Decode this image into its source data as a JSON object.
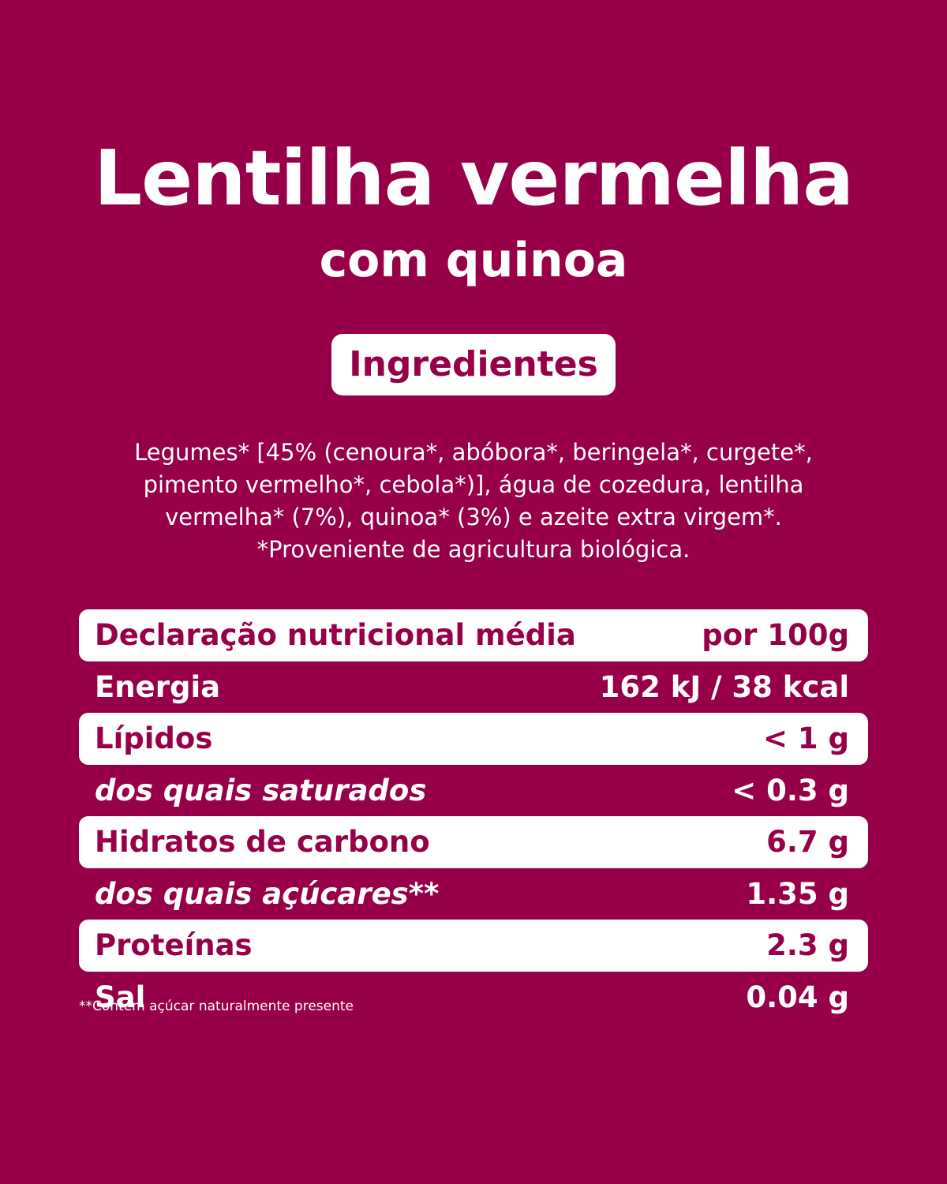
{
  "header": {
    "title": "Lentilha vermelha",
    "subtitle": "com quinoa"
  },
  "ingredients": {
    "label": "Ingredientes",
    "lines": [
      "Legumes* [45% (cenoura*, abóbora*, beringela*, curgete*,",
      "pimento vermelho*, cebola*)], água de cozedura, lentilha",
      "vermelha* (7%), quinoa* (3%) e azeite extra virgem*.",
      "*Proveniente de agricultura biológica."
    ]
  },
  "nutrition": {
    "rows": [
      {
        "label": "Declaração nutricional média",
        "value": "por 100g"
      },
      {
        "label": "Energia",
        "value": "162 kJ / 38 kcal"
      },
      {
        "label": "Lípidos",
        "value": "< 1 g"
      },
      {
        "label": "dos quais saturados",
        "value": "< 0.3 g"
      },
      {
        "label": "Hidratos de carbono",
        "value": "6.7 g"
      },
      {
        "label": "dos quais açúcares**",
        "value": "1.35 g"
      },
      {
        "label": "Proteínas",
        "value": "2.3 g"
      },
      {
        "label": "Sal",
        "value": "0.04 g"
      }
    ],
    "footnote": "**Contém açúcar naturalmente presente"
  },
  "colors": {
    "background": "#970048",
    "text": "#ffffff"
  }
}
